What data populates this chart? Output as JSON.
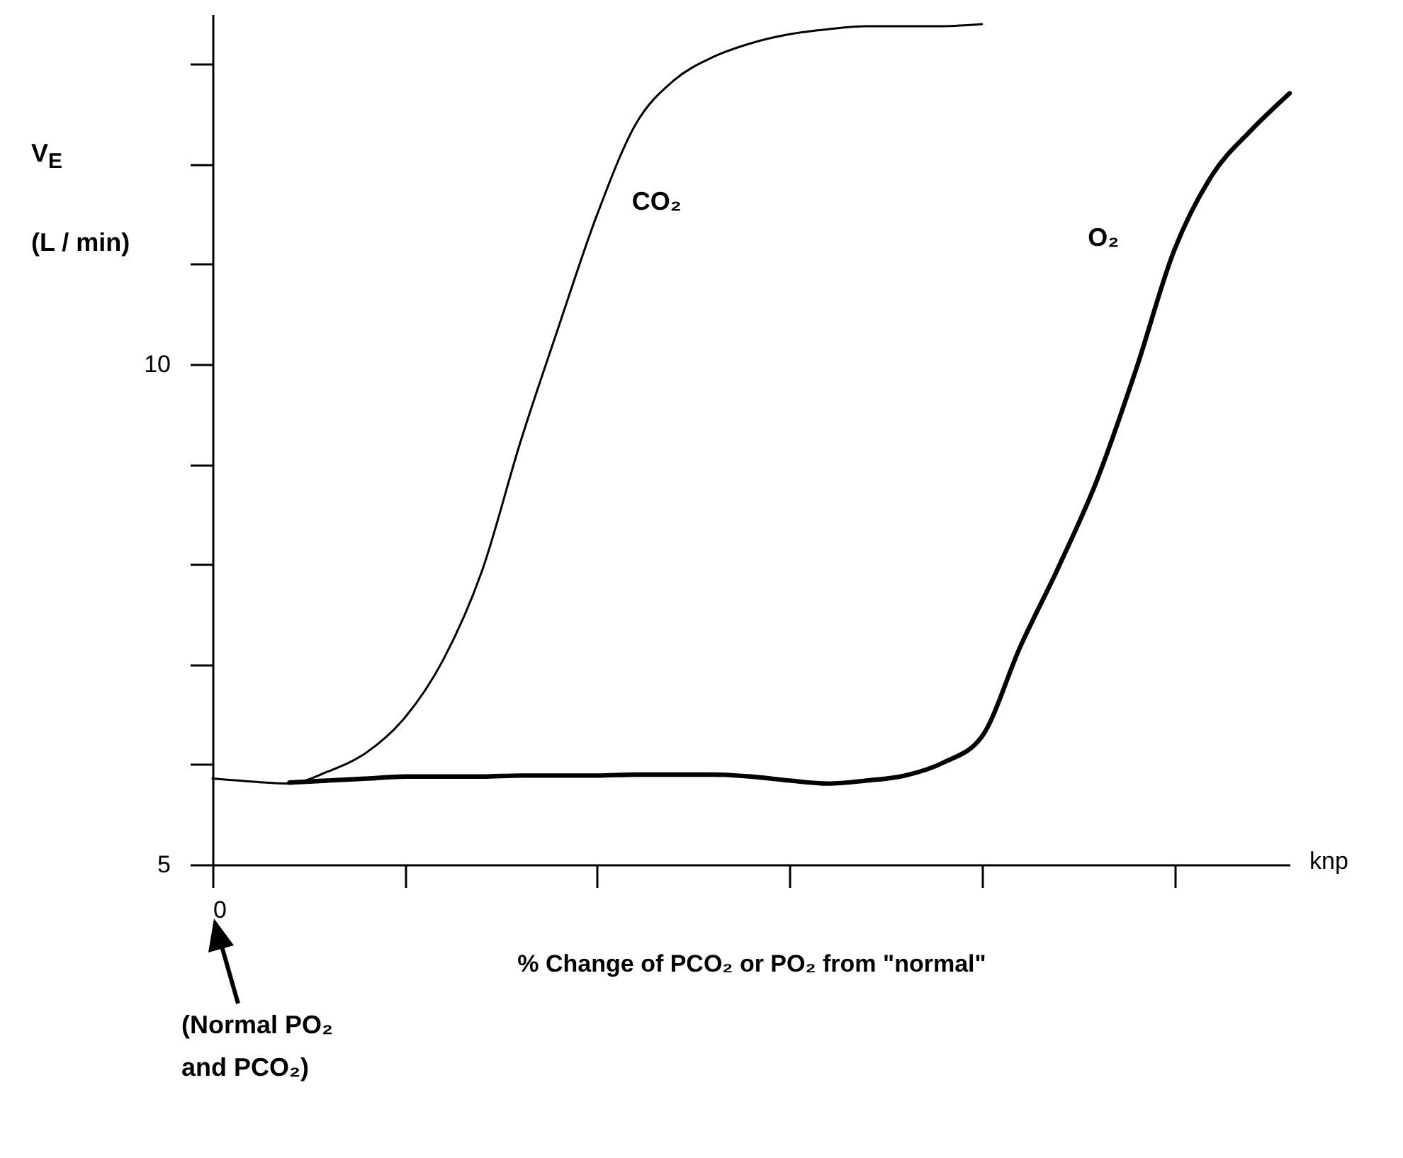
{
  "chart_data": {
    "type": "line",
    "xlabel": "% Change of PCO₂ or PO₂ from \"normal\"",
    "ylabel": "V$_{E}$\n(L / min)",
    "annotations": [
      "knp",
      "(Normal PO₂ and PCO₂)"
    ],
    "categories": [
      "0",
      null,
      null,
      null,
      null,
      null,
      null,
      null,
      null,
      null,
      null,
      null,
      null,
      null,
      null,
      null,
      null,
      null,
      null,
      null,
      null,
      null,
      null,
      null,
      null,
      null,
      null,
      null,
      null
    ],
    "ylim": [
      5,
      13.5
    ],
    "yticks": [
      5,
      {
        "value": 6,
        "label": null
      },
      {
        "value": 7,
        "label": null
      },
      {
        "value": 8,
        "label": null
      },
      {
        "value": 9,
        "label": null
      },
      10,
      {
        "value": 11,
        "label": null
      },
      {
        "value": 12,
        "label": null
      },
      {
        "value": 13,
        "label": null
      }
    ],
    "series": [
      {
        "name": "CO₂",
        "color": "#000000",
        "values": [
          5.86,
          5.83,
          5.81,
          5.93,
          6.12,
          6.47,
          7.05,
          7.93,
          9.22,
          10.38,
          11.5,
          12.4,
          12.84,
          13.07,
          13.21,
          13.3,
          13.35,
          13.38,
          13.38,
          13.38,
          13.4,
          null,
          null,
          null,
          null,
          null,
          null,
          null,
          null
        ]
      },
      {
        "name": "O₂",
        "color": "#000000",
        "values": [
          null,
          null,
          5.82,
          5.84,
          5.86,
          5.88,
          5.88,
          5.88,
          5.89,
          5.89,
          5.89,
          5.9,
          5.9,
          5.9,
          5.88,
          5.84,
          5.81,
          5.84,
          5.89,
          6.02,
          6.28,
          7.18,
          7.98,
          8.85,
          9.94,
          11.14,
          11.9,
          12.34,
          12.71
        ]
      }
    ]
  }
}
